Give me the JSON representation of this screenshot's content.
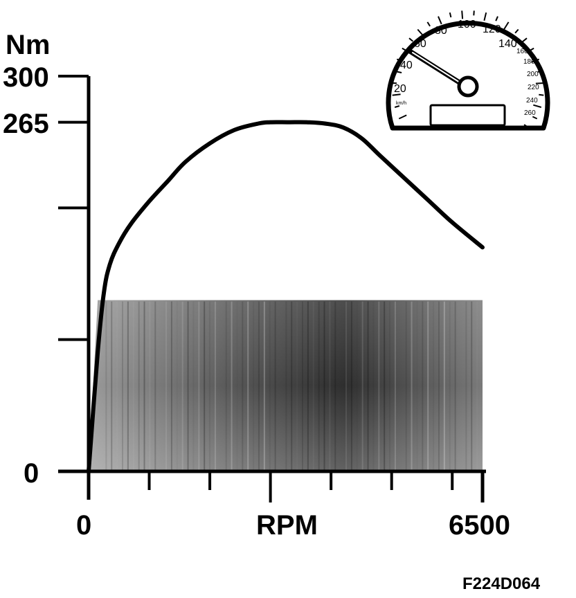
{
  "chart_data": {
    "type": "line",
    "ylabel": "Nm",
    "xlabel": "RPM",
    "ylim": [
      0,
      300
    ],
    "xlim": [
      0,
      6500
    ],
    "y_tick_labels": [
      "300",
      "265",
      "0"
    ],
    "x_tick_labels": [
      "0",
      "6500"
    ],
    "series": [
      {
        "x": [
          0,
          150,
          250,
          350,
          500,
          700,
          1000,
          1300,
          1600,
          2000,
          2400,
          2800,
          3000,
          3300,
          3600,
          3900,
          4200,
          4500,
          4800,
          5200,
          5600,
          6000,
          6500
        ],
        "y": [
          0,
          90,
          135,
          157,
          173,
          188,
          205,
          220,
          235,
          249,
          259,
          264,
          265,
          265,
          265,
          264,
          261,
          253,
          240,
          223,
          206,
          189,
          170
        ]
      }
    ],
    "shaded_region": {
      "x": [
        0,
        6500
      ],
      "y_top": 130
    },
    "code": "F224D064"
  },
  "speedometer": {
    "unit": "km/h",
    "labels": [
      "20",
      "40",
      "60",
      "80",
      "100",
      "120",
      "140",
      "160",
      "180",
      "200",
      "220",
      "240",
      "260"
    ],
    "needle_value": 50
  },
  "colors": {
    "ink": "#000000",
    "shade_light": "#d4d4d4",
    "shade_dark": "#3a3a3a"
  }
}
